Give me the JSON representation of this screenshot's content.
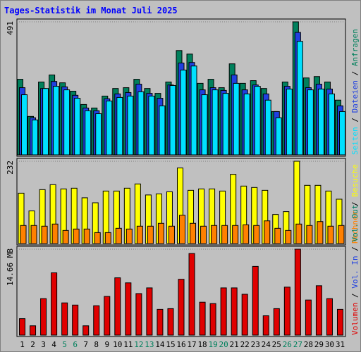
{
  "title": "Tages-Statistik im Monat Juli 2025",
  "legend_separator": " / ",
  "highlight_color": "#00805c",
  "chart_data": [
    {
      "type": "bar",
      "legend_reversed": true,
      "ylim": [
        0,
        491
      ],
      "yticks": [
        491
      ],
      "series": [
        {
          "name": "Anfragen",
          "color": "#00805c",
          "values": [
            279,
            142,
            269,
            295,
            266,
            235,
            186,
            173,
            217,
            245,
            248,
            279,
            245,
            227,
            269,
            385,
            372,
            264,
            279,
            248,
            336,
            264,
            274,
            245,
            160,
            269,
            491,
            284,
            289,
            269,
            202
          ]
        },
        {
          "name": "Dateien",
          "color": "#2040e0",
          "values": [
            248,
            137,
            245,
            271,
            251,
            220,
            173,
            163,
            207,
            225,
            230,
            261,
            227,
            209,
            258,
            339,
            341,
            240,
            248,
            238,
            295,
            240,
            258,
            225,
            160,
            253,
            452,
            248,
            261,
            243,
            181
          ]
        },
        {
          "name": "Seiten",
          "color": "#00e0ff",
          "values": [
            222,
            129,
            245,
            253,
            240,
            209,
            163,
            152,
            199,
            212,
            217,
            233,
            217,
            181,
            256,
            313,
            328,
            222,
            240,
            227,
            264,
            225,
            253,
            202,
            137,
            243,
            419,
            240,
            243,
            225,
            160
          ]
        }
      ]
    },
    {
      "type": "bar",
      "legend_reversed": true,
      "ylim": [
        0,
        232
      ],
      "yticks": [
        232
      ],
      "series": [
        {
          "name": "Besuche",
          "color": "#ffff00",
          "values": [
            142,
            92,
            152,
            166,
            154,
            156,
            129,
            115,
            148,
            148,
            156,
            168,
            137,
            140,
            146,
            213,
            150,
            154,
            154,
            148,
            195,
            162,
            158,
            150,
            82,
            90,
            232,
            164,
            164,
            148,
            125
          ]
        },
        {
          "name": "Rechner",
          "color": "#ff8000",
          "values": [
            51,
            51,
            49,
            55,
            37,
            41,
            41,
            31,
            31,
            43,
            41,
            49,
            49,
            57,
            49,
            80,
            57,
            49,
            51,
            51,
            51,
            53,
            51,
            64,
            43,
            37,
            55,
            51,
            62,
            49,
            51
          ]
        }
      ]
    },
    {
      "type": "bar",
      "legend_reversed": false,
      "ylim": [
        0,
        14.66
      ],
      "yticks": [
        {
          "value": 14.66,
          "label": "14.66 MB"
        }
      ],
      "categories": [
        "1",
        "2",
        "3",
        "4",
        "5",
        "6",
        "7",
        "8",
        "9",
        "10",
        "11",
        "12",
        "13",
        "14",
        "15",
        "16",
        "17",
        "18",
        "19",
        "20",
        "21",
        "22",
        "23",
        "24",
        "25",
        "26",
        "27",
        "28",
        "29",
        "30",
        "31"
      ],
      "highlight_categories": [
        "5",
        "6",
        "12",
        "13",
        "19",
        "20",
        "26",
        "27"
      ],
      "series": [
        {
          "name": "Volumen",
          "color": "#e00000",
          "values": [
            2.81,
            1.59,
            6.23,
            10.63,
            5.5,
            5.13,
            1.59,
            5.01,
            6.6,
            9.78,
            8.92,
            7.09,
            8.06,
            4.4,
            4.52,
            9.53,
            13.93,
            5.62,
            5.38,
            8.06,
            8.06,
            6.97,
            11.73,
            3.3,
            4.52,
            8.19,
            14.66,
            5.99,
            8.43,
            6.23,
            4.4
          ]
        }
      ],
      "extra_legend": [
        {
          "name": "Vol. In",
          "color": "#2040e0"
        },
        {
          "name": "Vol. Out",
          "color": "#00805c"
        }
      ]
    }
  ]
}
